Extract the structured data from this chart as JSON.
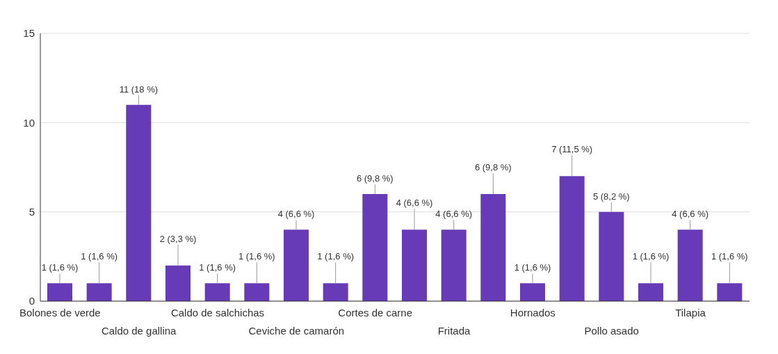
{
  "chart_data": {
    "type": "bar",
    "categories": [
      "Bolones de verde",
      null,
      "Caldo de gallina",
      null,
      "Caldo de salchichas",
      null,
      "Ceviche de camarón",
      null,
      "Cortes de carne",
      null,
      "Fritada",
      null,
      "Hornados",
      null,
      "Pollo asado",
      null,
      "Tilapia",
      null
    ],
    "values": [
      1,
      1,
      11,
      2,
      1,
      1,
      4,
      1,
      6,
      4,
      4,
      6,
      1,
      7,
      5,
      1,
      4,
      1
    ],
    "value_labels": [
      "1 (1,6 %)",
      "1 (1,6 %)",
      "11 (18 %)",
      "2 (3,3 %)",
      "1 (1,6 %)",
      "1 (1,6 %)",
      "4 (6,6 %)",
      "1 (1,6 %)",
      "6 (9,8 %)",
      "4 (6,6 %)",
      "4 (6,6 %)",
      "6 (9,8 %)",
      "1 (1,6 %)",
      "7 (11,5 %)",
      "5 (8,2 %)",
      "1 (1,6 %)",
      "4 (6,6 %)",
      "1 (1,6 %)"
    ],
    "color": "#673ab7",
    "ylim": [
      0,
      15
    ],
    "yticks": [
      0,
      5,
      10,
      15
    ],
    "grid": "y",
    "legend": false
  }
}
